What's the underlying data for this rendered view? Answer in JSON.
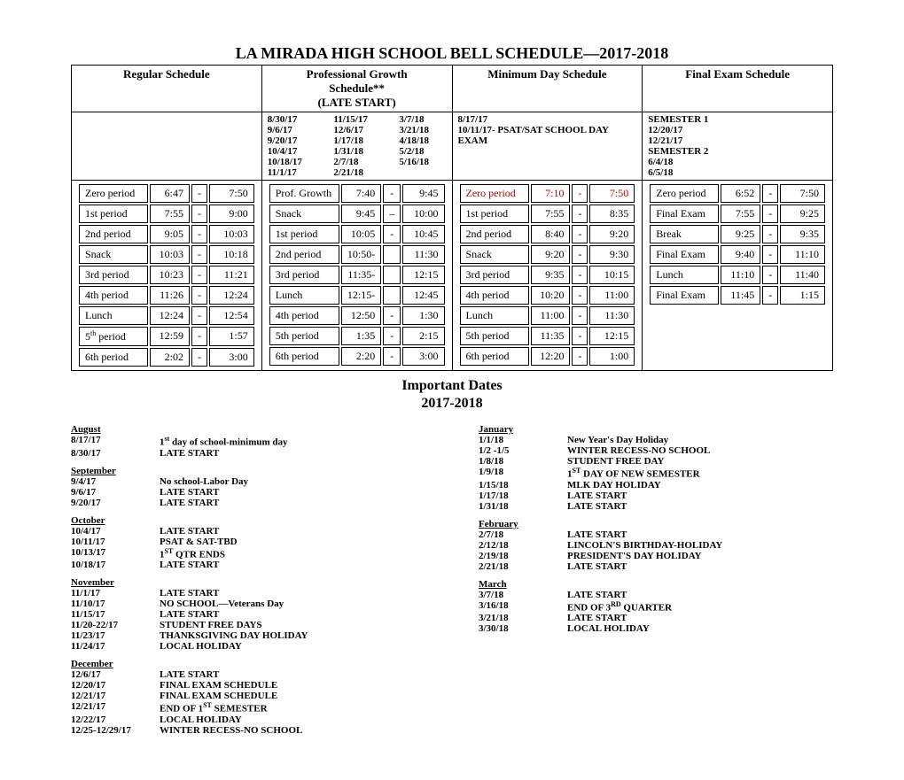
{
  "title": "LA MIRADA HIGH SCHOOL BELL SCHEDULE—2017-2018",
  "headers": {
    "regular": "Regular Schedule",
    "prof_growth_line1": "Professional Growth",
    "prof_growth_line2": "Schedule**",
    "prof_growth_line3": "(LATE START)",
    "minimum": "Minimum Day Schedule",
    "final": "Final Exam Schedule"
  },
  "prof_growth_dates": [
    "8/30/17",
    "11/15/17",
    "3/7/18",
    "9/6/17",
    "12/6/17",
    "3/21/18",
    "9/20/17",
    "1/17/18",
    "4/18/18",
    "10/4/17",
    "1/31/18",
    "5/2/18",
    "10/18/17",
    "2/7/18",
    "5/16/18",
    "11/1/17",
    "2/21/18",
    ""
  ],
  "minimum_dates": {
    "line1": "8/17/17",
    "line2": "10/11/17- PSAT/SAT SCHOOL DAY EXAM"
  },
  "final_dates": {
    "sem1": "SEMESTER 1",
    "d1": "12/20/17",
    "d2": "12/21/17",
    "sem2": "SEMESTER 2",
    "d3": "6/4/18",
    "d4": "6/5/18"
  },
  "regular_periods": [
    {
      "name": "Zero period",
      "start": "6:47",
      "end": "7:50"
    },
    {
      "name": "1st period",
      "start": "7:55",
      "end": "9:00"
    },
    {
      "name": "2nd period",
      "start": "9:05",
      "end": "10:03"
    },
    {
      "name": "Snack",
      "start": "10:03",
      "end": "10:18"
    },
    {
      "name": "3rd period",
      "start": "10:23",
      "end": "11:21"
    },
    {
      "name": "4th period",
      "start": "11:26",
      "end": "12:24"
    },
    {
      "name": "Lunch",
      "start": "12:24",
      "end": "12:54"
    },
    {
      "name": "5th period",
      "sup": "th",
      "base": "5",
      "start": "12:59",
      "end": "1:57"
    },
    {
      "name": "6th period",
      "start": "2:02",
      "end": "3:00"
    }
  ],
  "prof_periods": [
    {
      "name": "Prof. Growth",
      "start": "7:40",
      "end": "9:45"
    },
    {
      "name": "Snack",
      "start": "9:45",
      "dash": "–",
      "end": "10:00"
    },
    {
      "name": "1st period",
      "start": "10:05",
      "end": "10:45"
    },
    {
      "name": "2nd period",
      "start": "10:50",
      "end": "11:30",
      "nodash": true
    },
    {
      "name": "3rd period",
      "start": "11:35",
      "end": "12:15",
      "nodash": true
    },
    {
      "name": "Lunch",
      "start": "12:15",
      "end": "12:45",
      "nodash": true
    },
    {
      "name": "4th period",
      "start": "12:50",
      "end": "1:30"
    },
    {
      "name": "5th period",
      "start": "1:35",
      "end": "2:15"
    },
    {
      "name": "6th period",
      "start": "2:20",
      "end": "3:00"
    }
  ],
  "min_periods": [
    {
      "name": "Zero period",
      "start": "7:10",
      "end": "7:50",
      "red": true
    },
    {
      "name": "1st period",
      "start": "7:55",
      "end": "8:35"
    },
    {
      "name": "2nd period",
      "start": "8:40",
      "end": "9:20"
    },
    {
      "name": "Snack",
      "start": "9:20",
      "end": "9:30"
    },
    {
      "name": "3rd period",
      "start": "9:35",
      "end": "10:15"
    },
    {
      "name": "4th period",
      "start": "10:20",
      "end": "11:00"
    },
    {
      "name": "Lunch",
      "start": "11:00",
      "end": "11:30"
    },
    {
      "name": "5th period",
      "start": "11:35",
      "end": "12:15"
    },
    {
      "name": "6th period",
      "start": "12:20",
      "end": "1:00"
    }
  ],
  "final_periods": [
    {
      "name": "Zero period",
      "start": "6:52",
      "end": "7:50"
    },
    {
      "name": "Final Exam",
      "start": "7:55",
      "end": "9:25"
    },
    {
      "name": "Break",
      "start": "9:25",
      "end": "9:35"
    },
    {
      "name": "Final Exam",
      "start": "9:40",
      "end": "11:10"
    },
    {
      "name": "Lunch",
      "start": "11:10",
      "end": "11:40"
    },
    {
      "name": "Final Exam",
      "start": "11:45",
      "end": "1:15"
    }
  ],
  "important_title1": "Important Dates",
  "important_title2": "2017-2018",
  "left_months": [
    {
      "month": "August",
      "rows": [
        {
          "d": "8/17/17",
          "e": "1st day of school-minimum day",
          "sup": "st",
          "base": "1",
          "suffix": " day of school-minimum day"
        },
        {
          "d": "8/30/17",
          "e": "LATE START"
        }
      ]
    },
    {
      "month": "September",
      "rows": [
        {
          "d": "9/4/17",
          "e": "No school-Labor Day"
        },
        {
          "d": "9/6/17",
          "e": "LATE START"
        },
        {
          "d": "9/20/17",
          "e": "LATE START"
        }
      ]
    },
    {
      "month": "October",
      "rows": [
        {
          "d": "10/4/17",
          "e": "LATE START"
        },
        {
          "d": "10/11/17",
          "e": "PSAT & SAT-TBD"
        },
        {
          "d": "10/13/17",
          "e": "1ST QTR ENDS",
          "sup": "ST",
          "base": "1",
          "suffix": " QTR ENDS"
        },
        {
          "d": "10/18/17",
          "e": "LATE START"
        }
      ]
    },
    {
      "month": "November",
      "rows": [
        {
          "d": "11/1/17",
          "e": "LATE START"
        },
        {
          "d": "11/10/17",
          "e": "NO SCHOOL—Veterans Day"
        },
        {
          "d": "11/15/17",
          "e": "LATE START"
        },
        {
          "d": "11/20-22/17",
          "e": "STUDENT FREE DAYS"
        },
        {
          "d": "11/23/17",
          "e": "THANKSGIVING DAY HOLIDAY"
        },
        {
          "d": "11/24/17",
          "e": "LOCAL HOLIDAY"
        }
      ]
    },
    {
      "month": "December",
      "rows": [
        {
          "d": "12/6/17",
          "e": "LATE START"
        },
        {
          "d": "12/20/17",
          "e": "FINAL EXAM SCHEDULE"
        },
        {
          "d": "12/21/17",
          "e": "FINAL EXAM SCHEDULE"
        },
        {
          "d": "12/21/17",
          "e": "END OF 1ST SEMESTER",
          "sup": "ST",
          "base": "END OF 1",
          "suffix": " SEMESTER"
        },
        {
          "d": "12/22/17",
          "e": "LOCAL HOLIDAY"
        },
        {
          "d": "12/25-12/29/17",
          "e": "WINTER RECESS-NO SCHOOL"
        }
      ]
    }
  ],
  "right_months": [
    {
      "month": "January",
      "rows": [
        {
          "d": "1/1/18",
          "e": "New Year's Day Holiday"
        },
        {
          "d": "1/2 -1/5",
          "e": "WINTER RECESS-NO SCHOOL"
        },
        {
          "d": "1/8/18",
          "e": "STUDENT FREE DAY"
        },
        {
          "d": "1/9/18",
          "e": "1ST DAY OF NEW SEMESTER",
          "sup": "ST",
          "base": "1",
          "suffix": " DAY OF NEW SEMESTER"
        },
        {
          "d": "1/15/18",
          "e": "MLK DAY HOLIDAY"
        },
        {
          "d": "1/17/18",
          "e": "LATE START"
        },
        {
          "d": "1/31/18",
          "e": "LATE START"
        }
      ]
    },
    {
      "month": "February",
      "rows": [
        {
          "d": "2/7/18",
          "e": "LATE START"
        },
        {
          "d": "2/12/18",
          "e": "LINCOLN'S BIRTHDAY-HOLIDAY"
        },
        {
          "d": "2/19/18",
          "e": "PRESIDENT'S DAY HOLIDAY"
        },
        {
          "d": "2/21/18",
          "e": "LATE START"
        }
      ]
    },
    {
      "month": "March",
      "rows": [
        {
          "d": "3/7/18",
          "e": "LATE START"
        },
        {
          "d": "3/16/18",
          "e": "END OF 3RD QUARTER",
          "sup": "RD",
          "base": "END OF 3",
          "suffix": " QUARTER"
        },
        {
          "d": "3/21/18",
          "e": "LATE START"
        },
        {
          "d": "3/30/18",
          "e": "LOCAL HOLIDAY"
        }
      ]
    }
  ]
}
